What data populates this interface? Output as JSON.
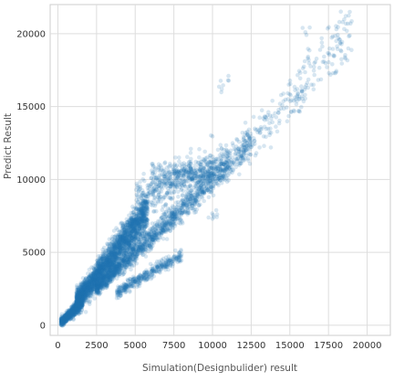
{
  "chart_data": {
    "type": "scatter",
    "title": "",
    "xlabel": "Simulation(Designbulider) result",
    "ylabel": "Predict Result",
    "xlim": [
      -500,
      21500
    ],
    "ylim": [
      -700,
      22000
    ],
    "xticks": [
      0,
      2500,
      5000,
      7500,
      10000,
      12500,
      15000,
      17500,
      20000
    ],
    "yticks": [
      0,
      5000,
      10000,
      15000,
      20000
    ],
    "grid": true,
    "point_color": "#1f77b4",
    "point_opacity": 0.18,
    "point_count_estimate": "about 20000",
    "series": [
      {
        "clusters": [
          {
            "x_range": [
              200,
              1500
            ],
            "y_range": [
              200,
              1500
            ],
            "density": "very dense"
          },
          {
            "x_range": [
              1500,
              5500
            ],
            "y_range": [
              1500,
              8500
            ],
            "density": "very dense, main band along y ≈ 1.35x"
          },
          {
            "x_range": [
              3000,
              12500
            ],
            "y_range": [
              2500,
              12500
            ],
            "density": "dense, secondary band along y ≈ x"
          },
          {
            "x_range": [
              4000,
              8000
            ],
            "y_range": [
              2500,
              5000
            ],
            "density": "medium, lower branch"
          },
          {
            "x_range": [
              5000,
              11000
            ],
            "y_range": [
              8500,
              12500
            ],
            "density": "medium, upper spread"
          },
          {
            "x_range": [
              12000,
              16000
            ],
            "y_range": [
              12500,
              16000
            ],
            "density": "sparse"
          },
          {
            "x_range": [
              16000,
              19000
            ],
            "y_range": [
              16000,
              21000
            ],
            "density": "sparse"
          }
        ],
        "outliers": [
          {
            "x": 10000,
            "y": 7300
          },
          {
            "x": 10300,
            "y": 7600
          },
          {
            "x": 17800,
            "y": 17300
          },
          {
            "x": 18600,
            "y": 18300
          },
          {
            "x": 16000,
            "y": 20100
          },
          {
            "x": 18200,
            "y": 20800
          },
          {
            "x": 11000,
            "y": 16800
          },
          {
            "x": 10600,
            "y": 16200
          }
        ]
      }
    ]
  }
}
